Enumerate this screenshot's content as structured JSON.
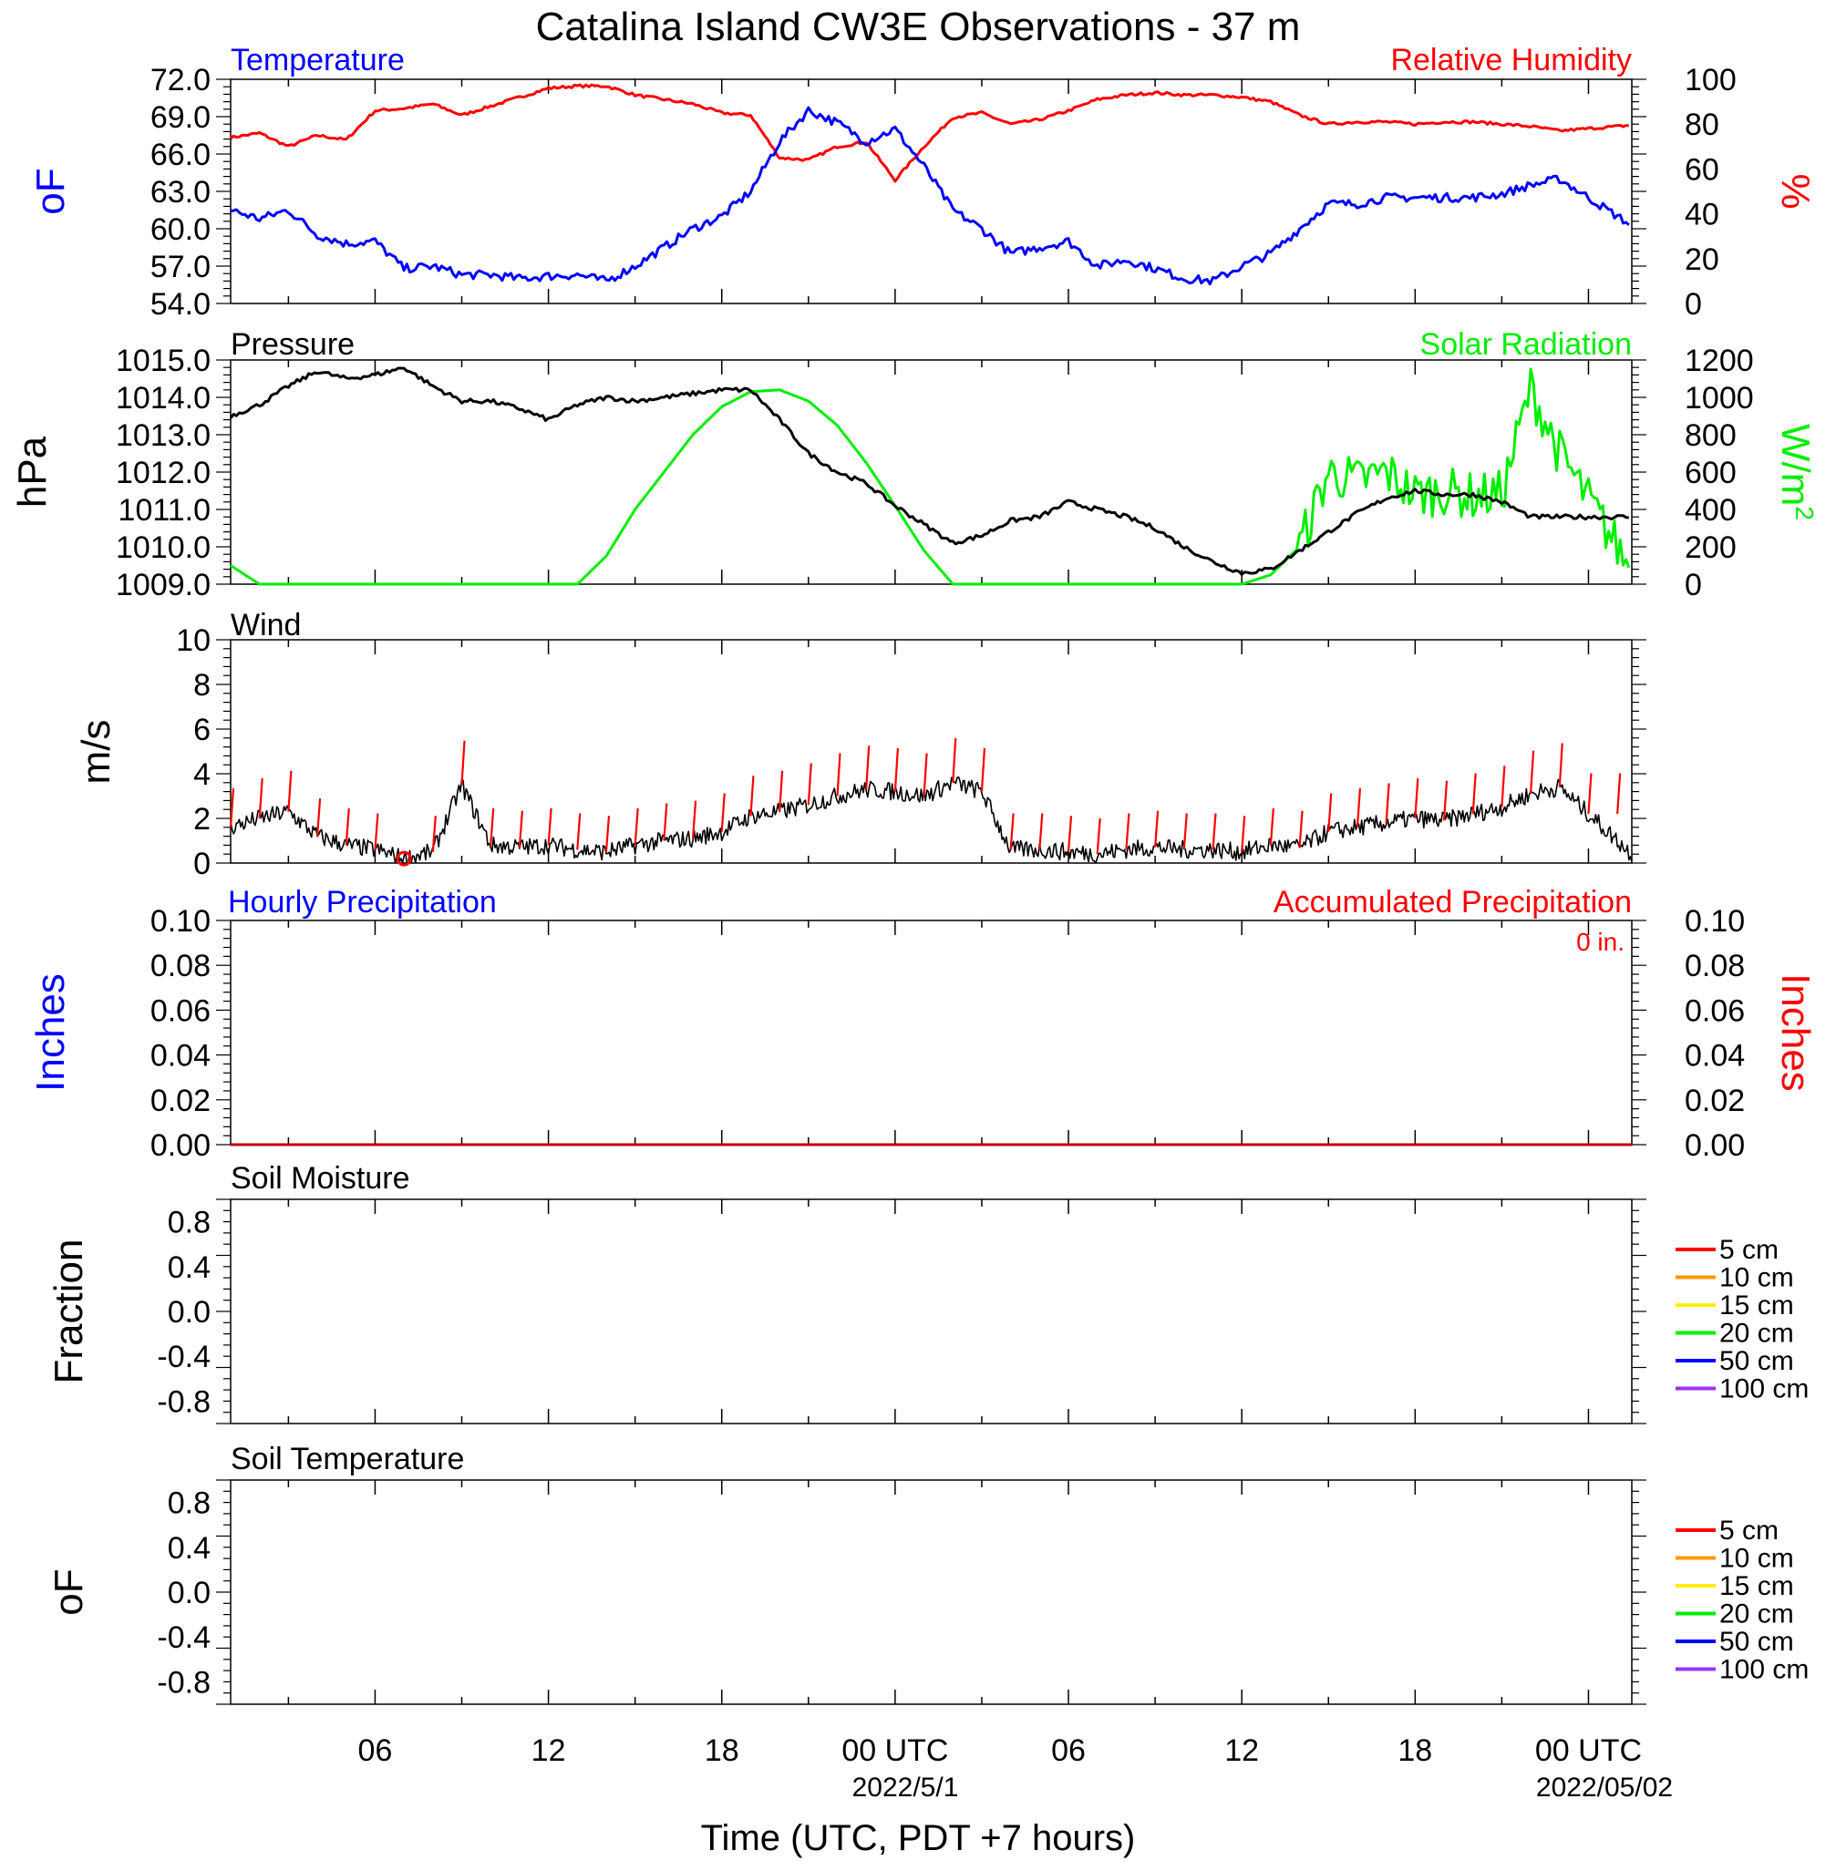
{
  "title": "Catalina Island CW3E Observations - 37 m",
  "x_axis": {
    "label": "Time (UTC, PDT +7 hours)",
    "tick_labels": [
      "06",
      "12",
      "18",
      "00 UTC",
      "06",
      "12",
      "18",
      "00 UTC"
    ],
    "date_labels": [
      "2022/5/1",
      "2022/05/02"
    ]
  },
  "colors": {
    "temperature": "#0000ff",
    "humidity": "#ff0000",
    "pressure": "#000000",
    "solar": "#00ee00",
    "wind": "#000000",
    "wind_barb": "#ff0000",
    "precip_line": "#c00000",
    "soil_5": "#ff0000",
    "soil_10": "#ff9900",
    "soil_15": "#ffee00",
    "soil_20": "#00ee00",
    "soil_50": "#0000ff",
    "soil_100": "#9933ff"
  },
  "panels": {
    "temp_rh": {
      "left_title": "Temperature",
      "right_title": "Relative Humidity",
      "left_unit": "oF",
      "right_unit": "%",
      "left_ticks": [
        "72.0",
        "69.0",
        "66.0",
        "63.0",
        "60.0",
        "57.0",
        "54.0"
      ],
      "right_ticks": [
        "100",
        "80",
        "60",
        "40",
        "20",
        "0"
      ]
    },
    "pressure_solar": {
      "left_title": "Pressure",
      "right_title": "Solar Radiation",
      "left_unit": "hPa",
      "right_unit": "W/m",
      "right_unit_sup": "2",
      "left_ticks": [
        "1015.0",
        "1014.0",
        "1013.0",
        "1012.0",
        "1011.0",
        "1010.0",
        "1009.0"
      ],
      "right_ticks": [
        "1200",
        "1000",
        "800",
        "600",
        "400",
        "200",
        "0"
      ]
    },
    "wind": {
      "left_title": "Wind",
      "left_unit": "m/s",
      "left_ticks": [
        "10",
        "8",
        "6",
        "4",
        "2",
        "0"
      ]
    },
    "precip": {
      "left_title": "Hourly Precipitation",
      "right_title": "Accumulated Precipitation",
      "accum_text": "0 in.",
      "left_unit": "Inches",
      "right_unit": "Inches",
      "left_ticks": [
        "0.10",
        "0.08",
        "0.06",
        "0.04",
        "0.02",
        "0.00"
      ],
      "right_ticks": [
        "0.10",
        "0.08",
        "0.06",
        "0.04",
        "0.02",
        "0.00"
      ]
    },
    "soil_moisture": {
      "left_title": "Soil Moisture",
      "left_unit": "Fraction",
      "left_ticks": [
        "0.8",
        "0.4",
        "0.0",
        "-0.4",
        "-0.8"
      ],
      "legend": [
        "5 cm",
        "10 cm",
        "15 cm",
        "20 cm",
        "50 cm",
        "100 cm"
      ]
    },
    "soil_temp": {
      "left_title": "Soil Temperature",
      "left_unit": "oF",
      "left_ticks": [
        "0.8",
        "0.4",
        "0.0",
        "-0.4",
        "-0.8"
      ],
      "legend": [
        "5 cm",
        "10 cm",
        "15 cm",
        "20 cm",
        "50 cm",
        "100 cm"
      ]
    }
  },
  "chart_data": [
    {
      "type": "line",
      "title": "Temperature / Relative Humidity",
      "x_hours": [
        0,
        1,
        2,
        3,
        4,
        5,
        6,
        7,
        8,
        9,
        10,
        11,
        12,
        13,
        14,
        15,
        16,
        17,
        18,
        19,
        20,
        21,
        22,
        23,
        24,
        25,
        26,
        27,
        28,
        29,
        30,
        31,
        32,
        33,
        34,
        35,
        36,
        37,
        38,
        39,
        40,
        41,
        42,
        43,
        44,
        45,
        46,
        47,
        48
      ],
      "series": [
        {
          "name": "Temperature",
          "axis": "left",
          "ylim": [
            54,
            72
          ],
          "values": [
            63.5,
            61.5,
            60.8,
            61.5,
            59.5,
            58.8,
            59.0,
            56.8,
            57.0,
            56.3,
            56.3,
            56.0,
            56.2,
            56.3,
            55.8,
            57.0,
            58.5,
            60.0,
            61.0,
            63.0,
            67.0,
            69.5,
            68.5,
            67.0,
            68.0,
            65.0,
            61.5,
            60.0,
            58.0,
            58.5,
            59.0,
            57.0,
            57.5,
            56.8,
            56.0,
            55.8,
            57.0,
            58.0,
            60.0,
            62.0,
            62.0,
            62.5,
            62.5,
            62.5,
            62.5,
            62.8,
            63.5,
            64.0,
            62.5
          ]
        },
        {
          "name": "Relative Humidity",
          "axis": "right",
          "ylim": [
            0,
            100
          ],
          "values": [
            74,
            74,
            76,
            70,
            75,
            73,
            86,
            87,
            89,
            84,
            88,
            92,
            96,
            97,
            97,
            93,
            91,
            89,
            85,
            84,
            65,
            64,
            70,
            72,
            55,
            70,
            83,
            85,
            80,
            82,
            86,
            91,
            93,
            94,
            93,
            93,
            92,
            90,
            84,
            80,
            81,
            81,
            80,
            81,
            81,
            80,
            79,
            77,
            78
          ]
        }
      ]
    },
    {
      "type": "line",
      "title": "Pressure / Solar Radiation",
      "x_hours": [
        0,
        1,
        2,
        3,
        4,
        5,
        6,
        7,
        8,
        9,
        10,
        11,
        12,
        13,
        14,
        15,
        16,
        17,
        18,
        19,
        20,
        21,
        22,
        23,
        24,
        25,
        26,
        27,
        28,
        29,
        30,
        31,
        32,
        33,
        34,
        35,
        36,
        37,
        38,
        39,
        40,
        41,
        42,
        43,
        44,
        45,
        46,
        47,
        48
      ],
      "series": [
        {
          "name": "Pressure",
          "axis": "left",
          "ylim": [
            1009,
            1015
          ],
          "values": [
            1013.9,
            1013.5,
            1013.8,
            1014.3,
            1014.7,
            1014.5,
            1014.6,
            1014.8,
            1014.3,
            1013.9,
            1013.9,
            1013.7,
            1013.4,
            1013.8,
            1014.0,
            1013.9,
            1014.0,
            1014.1,
            1014.2,
            1014.2,
            1013.4,
            1012.5,
            1012.0,
            1011.7,
            1011.1,
            1010.6,
            1010.1,
            1010.3,
            1010.7,
            1010.8,
            1011.2,
            1011.0,
            1010.8,
            1010.5,
            1010.0,
            1009.6,
            1009.3,
            1009.4,
            1009.9,
            1010.4,
            1010.9,
            1011.3,
            1011.5,
            1011.4,
            1011.4,
            1011.2,
            1010.8,
            1010.8,
            1010.8
          ]
        },
        {
          "name": "Solar Radiation",
          "axis": "right",
          "ylim": [
            0,
            1200
          ],
          "values": [
            300,
            100,
            0,
            0,
            0,
            0,
            0,
            0,
            0,
            0,
            0,
            0,
            0,
            0,
            150,
            400,
            600,
            800,
            950,
            1030,
            1040,
            980,
            850,
            650,
            420,
            180,
            0,
            0,
            0,
            0,
            0,
            0,
            0,
            0,
            0,
            0,
            0,
            50,
            200,
            600,
            550,
            600,
            480,
            500,
            470,
            480,
            1050,
            700,
            450
          ]
        }
      ]
    },
    {
      "type": "line",
      "title": "Wind",
      "ylim": [
        0,
        10
      ],
      "x_hours": [
        0,
        1,
        2,
        3,
        4,
        5,
        6,
        7,
        8,
        9,
        10,
        11,
        12,
        13,
        14,
        15,
        16,
        17,
        18,
        19,
        20,
        21,
        22,
        23,
        24,
        25,
        26,
        27,
        28,
        29,
        30,
        31,
        32,
        33,
        34,
        35,
        36,
        37,
        38,
        39,
        40,
        41,
        42,
        43,
        44,
        45,
        46,
        47,
        48
      ],
      "series": [
        {
          "name": "Wind",
          "values": [
            2.1,
            1.6,
            2.0,
            2.3,
            1.2,
            0.8,
            0.6,
            0.2,
            0.5,
            3.5,
            0.8,
            0.7,
            0.8,
            0.6,
            0.5,
            0.8,
            1.0,
            1.1,
            1.4,
            2.1,
            2.3,
            2.6,
            3.0,
            3.3,
            3.2,
            3.0,
            3.6,
            3.2,
            0.6,
            0.6,
            0.5,
            0.4,
            0.6,
            0.7,
            0.6,
            0.6,
            0.5,
            0.8,
            0.7,
            1.4,
            1.6,
            1.8,
            2.0,
            1.9,
            2.2,
            2.5,
            3.1,
            3.4,
            2.2
          ]
        }
      ]
    },
    {
      "type": "line",
      "title": "Hourly Precipitation / Accumulated Precipitation",
      "x_hours": [
        0,
        48
      ],
      "series": [
        {
          "name": "Hourly Precipitation",
          "values": [
            0,
            0
          ]
        },
        {
          "name": "Accumulated Precipitation",
          "values": [
            0,
            0
          ]
        }
      ],
      "ylim": [
        0,
        0.1
      ]
    },
    {
      "type": "line",
      "title": "Soil Moisture",
      "ylim": [
        -1,
        1
      ],
      "series": [
        {
          "name": "5 cm",
          "values": []
        },
        {
          "name": "10 cm",
          "values": []
        },
        {
          "name": "15 cm",
          "values": []
        },
        {
          "name": "20 cm",
          "values": []
        },
        {
          "name": "50 cm",
          "values": []
        },
        {
          "name": "100 cm",
          "values": []
        }
      ]
    },
    {
      "type": "line",
      "title": "Soil Temperature",
      "ylim": [
        -1,
        1
      ],
      "series": [
        {
          "name": "5 cm",
          "values": []
        },
        {
          "name": "10 cm",
          "values": []
        },
        {
          "name": "15 cm",
          "values": []
        },
        {
          "name": "20 cm",
          "values": []
        },
        {
          "name": "50 cm",
          "values": []
        },
        {
          "name": "100 cm",
          "values": []
        }
      ]
    }
  ]
}
